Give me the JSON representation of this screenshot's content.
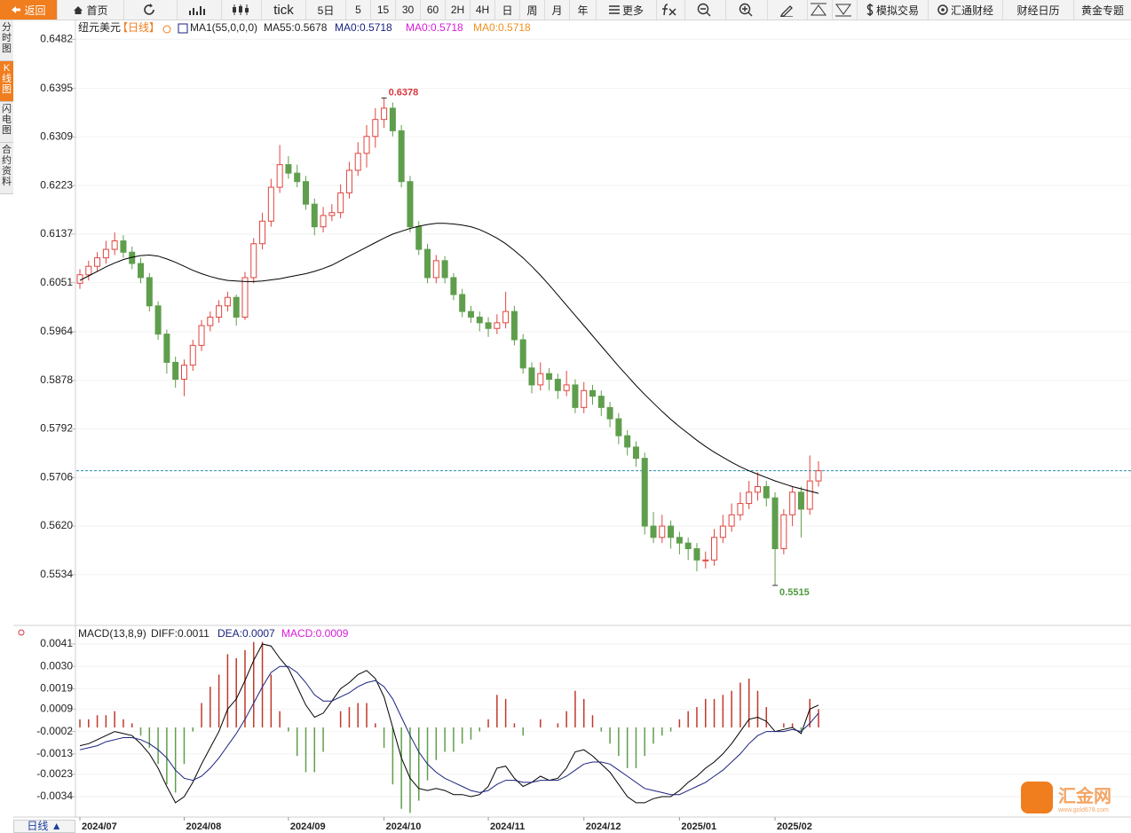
{
  "toolbar": [
    "返回",
    "首页",
    "tick",
    "5日",
    "5",
    "15",
    "30",
    "60",
    "2H",
    "4H",
    "日",
    "周",
    "月",
    "年",
    "更多",
    "模拟交易",
    "汇通财经",
    "财经日历",
    "黄金专题"
  ],
  "sidebar": [
    "分时图",
    "K线图",
    "闪电图",
    "合约资料"
  ],
  "period_button": "日线 ▲",
  "watermark": {
    "name": "汇金网",
    "url": "www.gold678.com"
  },
  "chart_data": {
    "type": "candlestick",
    "symbol": "纽元美元",
    "period": "【日线】",
    "up_color": "#e0453f",
    "down_color": "#5f9e4c",
    "ylim": [
      0.5452,
      0.6517
    ],
    "yticks": [
      0.6482,
      0.6395,
      0.6309,
      0.6223,
      0.6137,
      0.6051,
      0.5964,
      0.5878,
      0.5792,
      0.5706,
      {
        "value": 0.562,
        "label": "0.5620"
      },
      0.5534
    ],
    "categories": [
      "2024/07",
      null,
      null,
      null,
      null,
      null,
      null,
      null,
      null,
      null,
      null,
      null,
      "2024/08",
      null,
      null,
      null,
      null,
      null,
      null,
      null,
      null,
      null,
      null,
      null,
      "2024/09",
      null,
      null,
      null,
      null,
      null,
      null,
      null,
      null,
      null,
      null,
      "2024/10",
      null,
      null,
      null,
      null,
      null,
      null,
      null,
      null,
      null,
      null,
      null,
      "2024/11",
      null,
      null,
      null,
      null,
      null,
      null,
      null,
      null,
      null,
      null,
      "2024/12",
      null,
      null,
      null,
      null,
      null,
      null,
      null,
      null,
      null,
      null,
      "2025/01",
      null,
      null,
      null,
      null,
      null,
      null,
      null,
      null,
      null,
      null,
      "2025/02",
      null,
      null,
      null,
      null,
      null
    ],
    "candles": [
      [
        0.605,
        0.6075,
        0.604,
        0.6065
      ],
      [
        0.6065,
        0.609,
        0.6055,
        0.608
      ],
      [
        0.608,
        0.6105,
        0.607,
        0.6095
      ],
      [
        0.6095,
        0.6125,
        0.6085,
        0.611
      ],
      [
        0.611,
        0.614,
        0.61,
        0.6125
      ],
      [
        0.6125,
        0.6135,
        0.6095,
        0.6105
      ],
      [
        0.6105,
        0.6115,
        0.6075,
        0.6085
      ],
      [
        0.6085,
        0.6095,
        0.605,
        0.606
      ],
      [
        0.606,
        0.6068,
        0.6,
        0.601
      ],
      [
        0.601,
        0.6018,
        0.595,
        0.596
      ],
      [
        0.596,
        0.5968,
        0.589,
        0.591
      ],
      [
        0.591,
        0.592,
        0.5865,
        0.588
      ],
      [
        0.588,
        0.5915,
        0.585,
        0.5905
      ],
      [
        0.5905,
        0.595,
        0.5895,
        0.594
      ],
      [
        0.594,
        0.5985,
        0.593,
        0.5975
      ],
      [
        0.5975,
        0.6,
        0.5965,
        0.599
      ],
      [
        0.599,
        0.602,
        0.598,
        0.601
      ],
      [
        0.601,
        0.6035,
        0.6,
        0.6025
      ],
      [
        0.6025,
        0.603,
        0.5975,
        0.599
      ],
      [
        0.599,
        0.607,
        0.5985,
        0.606
      ],
      [
        0.606,
        0.613,
        0.605,
        0.612
      ],
      [
        0.612,
        0.6175,
        0.611,
        0.616
      ],
      [
        0.616,
        0.6235,
        0.615,
        0.622
      ],
      [
        0.622,
        0.6295,
        0.621,
        0.626
      ],
      [
        0.626,
        0.6275,
        0.6235,
        0.6245
      ],
      [
        0.6245,
        0.626,
        0.622,
        0.623
      ],
      [
        0.623,
        0.624,
        0.618,
        0.619
      ],
      [
        0.619,
        0.62,
        0.6135,
        0.615
      ],
      [
        0.615,
        0.6185,
        0.614,
        0.617
      ],
      [
        0.617,
        0.619,
        0.616,
        0.6175
      ],
      [
        0.6175,
        0.6225,
        0.6165,
        0.621
      ],
      [
        0.621,
        0.6265,
        0.62,
        0.625
      ],
      [
        0.625,
        0.63,
        0.624,
        0.628
      ],
      [
        0.628,
        0.633,
        0.6255,
        0.631
      ],
      [
        0.631,
        0.636,
        0.629,
        0.634
      ],
      [
        0.634,
        0.6378,
        0.6325,
        0.636
      ],
      [
        0.636,
        0.637,
        0.631,
        0.632
      ],
      [
        0.632,
        0.633,
        0.622,
        0.623
      ],
      [
        0.623,
        0.624,
        0.614,
        0.615
      ],
      [
        0.615,
        0.616,
        0.61,
        0.611
      ],
      [
        0.611,
        0.612,
        0.605,
        0.606
      ],
      [
        0.606,
        0.61,
        0.605,
        0.609
      ],
      [
        0.609,
        0.6098,
        0.605,
        0.606
      ],
      [
        0.606,
        0.6068,
        0.602,
        0.603
      ],
      [
        0.603,
        0.604,
        0.599,
        0.6
      ],
      [
        0.6,
        0.601,
        0.598,
        0.599
      ],
      [
        0.599,
        0.6,
        0.5965,
        0.598
      ],
      [
        0.598,
        0.599,
        0.5955,
        0.597
      ],
      [
        0.597,
        0.5995,
        0.596,
        0.598
      ],
      [
        0.598,
        0.6035,
        0.597,
        0.6
      ],
      [
        0.6,
        0.601,
        0.594,
        0.595
      ],
      [
        0.595,
        0.596,
        0.589,
        0.59
      ],
      [
        0.59,
        0.591,
        0.5855,
        0.587
      ],
      [
        0.587,
        0.591,
        0.586,
        0.589
      ],
      [
        0.589,
        0.59,
        0.586,
        0.588
      ],
      [
        0.588,
        0.589,
        0.5845,
        0.586
      ],
      [
        0.586,
        0.5895,
        0.585,
        0.587
      ],
      [
        0.587,
        0.588,
        0.582,
        0.583
      ],
      [
        0.583,
        0.5875,
        0.582,
        0.586
      ],
      [
        0.586,
        0.587,
        0.5835,
        0.585
      ],
      [
        0.585,
        0.586,
        0.5815,
        0.583
      ],
      [
        0.583,
        0.584,
        0.5795,
        0.581
      ],
      [
        0.581,
        0.582,
        0.5765,
        0.578
      ],
      [
        0.578,
        0.579,
        0.5745,
        0.576
      ],
      [
        0.576,
        0.577,
        0.5725,
        0.574
      ],
      [
        0.574,
        0.575,
        0.5605,
        0.562
      ],
      [
        0.562,
        0.5645,
        0.559,
        0.56
      ],
      [
        0.56,
        0.564,
        0.559,
        0.562
      ],
      [
        0.562,
        0.563,
        0.558,
        0.56
      ],
      [
        0.56,
        0.561,
        0.557,
        0.559
      ],
      [
        0.559,
        0.56,
        0.556,
        0.558
      ],
      [
        0.558,
        0.559,
        0.554,
        0.556
      ],
      [
        0.556,
        0.5575,
        0.5545,
        0.556
      ],
      [
        0.556,
        0.5615,
        0.555,
        0.56
      ],
      [
        0.56,
        0.564,
        0.559,
        0.562
      ],
      [
        0.562,
        0.566,
        0.561,
        0.564
      ],
      [
        0.564,
        0.568,
        0.563,
        0.566
      ],
      [
        0.566,
        0.57,
        0.565,
        0.568
      ],
      [
        0.568,
        0.5715,
        0.5665,
        0.569
      ],
      [
        0.569,
        0.57,
        0.5655,
        0.567
      ],
      [
        0.567,
        0.568,
        0.5515,
        0.558
      ],
      [
        0.558,
        0.565,
        0.557,
        0.564
      ],
      [
        0.564,
        0.569,
        0.562,
        0.568
      ],
      [
        0.568,
        0.569,
        0.56,
        0.565
      ],
      [
        0.565,
        0.5745,
        0.564,
        0.57
      ],
      [
        0.57,
        0.5735,
        0.569,
        0.5718
      ]
    ],
    "ma": {
      "name": "MA1(55,0,0,0)",
      "label": "MA55:",
      "color": "#000000",
      "values": [
        0.6055,
        0.6063,
        0.6071,
        0.6079,
        0.6086,
        0.6092,
        0.6096,
        0.6099,
        0.61,
        0.6098,
        0.6093,
        0.6087,
        0.608,
        0.6073,
        0.6067,
        0.6062,
        0.6058,
        0.6055,
        0.6054,
        0.6053,
        0.6053,
        0.6054,
        0.6056,
        0.6058,
        0.6061,
        0.6064,
        0.6067,
        0.6071,
        0.6076,
        0.6082,
        0.609,
        0.6098,
        0.6106,
        0.6114,
        0.6122,
        0.613,
        0.6137,
        0.6142,
        0.6147,
        0.6151,
        0.6154,
        0.6156,
        0.6156,
        0.6155,
        0.6153,
        0.615,
        0.6145,
        0.6138,
        0.613,
        0.612,
        0.6108,
        0.6095,
        0.608,
        0.6064,
        0.6047,
        0.6029,
        0.6011,
        0.5993,
        0.5975,
        0.5957,
        0.5939,
        0.5921,
        0.5903,
        0.5886,
        0.5869,
        0.5853,
        0.5838,
        0.5823,
        0.5809,
        0.5796,
        0.5784,
        0.5772,
        0.5761,
        0.5751,
        0.5742,
        0.5733,
        0.5725,
        0.5718,
        0.5712,
        0.5706,
        0.57,
        0.5695,
        0.569,
        0.5686,
        0.5682,
        0.5678
      ]
    },
    "ma0": {
      "label": "MA0:",
      "colors": [
        "#1a237e",
        "#d81bd8",
        "#f0901e"
      ]
    },
    "last_line_color": "#2a8fb0",
    "high_color": "#d9363e",
    "low_color": "#4e9a3c",
    "macd": {
      "title": "MACD(13,8,9)",
      "ylim": [
        -0.00436,
        0.00497
      ],
      "yticks": [
        0.0041,
        {
          "value": 0.003,
          "label": "0.0030"
        },
        0.0019,
        0.0009,
        -0.0002,
        -0.0013,
        -0.0023,
        -0.0034
      ],
      "diff": {
        "label": "DIFF:",
        "color": "#000000",
        "values": [
          -0.0009,
          -0.0008,
          -0.0006,
          -0.0004,
          -0.0002,
          -0.0003,
          -0.0004,
          -0.0008,
          -0.0013,
          -0.002,
          -0.0029,
          -0.0037,
          -0.0034,
          -0.0027,
          -0.0018,
          -0.001,
          -0.0002,
          0.0009,
          0.0014,
          0.0023,
          0.0033,
          0.0041,
          0.004,
          0.0034,
          0.0029,
          0.002,
          0.0011,
          0.0005,
          0.0007,
          0.0013,
          0.0019,
          0.0022,
          0.0026,
          0.0028,
          0.0024,
          0.0015,
          0.0,
          -0.0015,
          -0.0025,
          -0.003,
          -0.0031,
          -0.003,
          -0.0031,
          -0.0033,
          -0.0033,
          -0.0034,
          -0.0033,
          -0.0029,
          -0.002,
          -0.0019,
          -0.0025,
          -0.0029,
          -0.0027,
          -0.0024,
          -0.0026,
          -0.0025,
          -0.002,
          -0.0012,
          -0.0011,
          -0.0014,
          -0.0018,
          -0.0022,
          -0.0028,
          -0.0034,
          -0.0037,
          -0.0037,
          -0.0035,
          -0.0034,
          -0.0034,
          -0.0031,
          -0.0027,
          -0.0024,
          -0.002,
          -0.0017,
          -0.0013,
          -0.0008,
          -0.0002,
          0.0004,
          0.0005,
          0.0003,
          -0.0002,
          -0.0001,
          0.0,
          -0.0003,
          0.0009,
          0.0011
        ]
      },
      "dea": {
        "label": "DEA:",
        "color": "#1a237e",
        "values": [
          -0.0011,
          -0.001,
          -0.0009,
          -0.0007,
          -0.0006,
          -0.0005,
          -0.0005,
          -0.0006,
          -0.0008,
          -0.0011,
          -0.0015,
          -0.0021,
          -0.0025,
          -0.0026,
          -0.0024,
          -0.002,
          -0.0015,
          -0.0009,
          -0.0003,
          0.0004,
          0.0012,
          0.002,
          0.0027,
          0.003,
          0.003,
          0.0027,
          0.0022,
          0.0016,
          0.0013,
          0.0013,
          0.0015,
          0.0017,
          0.002,
          0.0022,
          0.0023,
          0.002,
          0.0014,
          0.0005,
          -0.0004,
          -0.0012,
          -0.0018,
          -0.0022,
          -0.0025,
          -0.0027,
          -0.0029,
          -0.0031,
          -0.0032,
          -0.0031,
          -0.0028,
          -0.0026,
          -0.0026,
          -0.0027,
          -0.0027,
          -0.0026,
          -0.0026,
          -0.0026,
          -0.0024,
          -0.0021,
          -0.0018,
          -0.0017,
          -0.0017,
          -0.0018,
          -0.0021,
          -0.0024,
          -0.0027,
          -0.003,
          -0.0031,
          -0.0032,
          -0.0033,
          -0.0033,
          -0.0031,
          -0.0029,
          -0.0027,
          -0.0024,
          -0.0021,
          -0.0017,
          -0.0013,
          -0.0008,
          -0.0004,
          -0.0002,
          -0.0002,
          -0.0002,
          -0.0001,
          -0.0002,
          0.0002,
          0.0007
        ]
      },
      "hist": {
        "label": "MACD:",
        "color": "#d81bd8",
        "up_color": "#c0392b",
        "down_color": "#5f9e4c",
        "values": [
          0.0004,
          0.0004,
          0.0006,
          0.0006,
          0.0008,
          0.0004,
          0.0002,
          -0.0004,
          -0.001,
          -0.0018,
          -0.0028,
          -0.0032,
          -0.0018,
          -0.0002,
          0.0012,
          0.002,
          0.0026,
          0.0036,
          0.0034,
          0.0038,
          0.0042,
          0.0042,
          0.0026,
          0.0008,
          -0.0002,
          -0.0014,
          -0.0022,
          -0.0022,
          -0.0012,
          0.0,
          0.0008,
          0.001,
          0.0012,
          0.0012,
          0.0002,
          -0.001,
          -0.0028,
          -0.004,
          -0.0042,
          -0.0036,
          -0.0026,
          -0.0016,
          -0.0012,
          -0.0012,
          -0.0008,
          -0.0006,
          -0.0002,
          0.0004,
          0.0016,
          0.0014,
          0.0002,
          -0.0004,
          0.0,
          0.0004,
          0.0,
          0.0002,
          0.0008,
          0.0018,
          0.0014,
          0.0006,
          -0.0002,
          -0.0008,
          -0.0014,
          -0.002,
          -0.002,
          -0.0014,
          -0.0008,
          -0.0004,
          -0.0002,
          0.0004,
          0.0008,
          0.001,
          0.0014,
          0.0014,
          0.0016,
          0.0018,
          0.0022,
          0.0024,
          0.0018,
          0.001,
          0.0,
          0.0002,
          0.0002,
          -0.0002,
          0.0014,
          0.0009
        ]
      }
    }
  }
}
